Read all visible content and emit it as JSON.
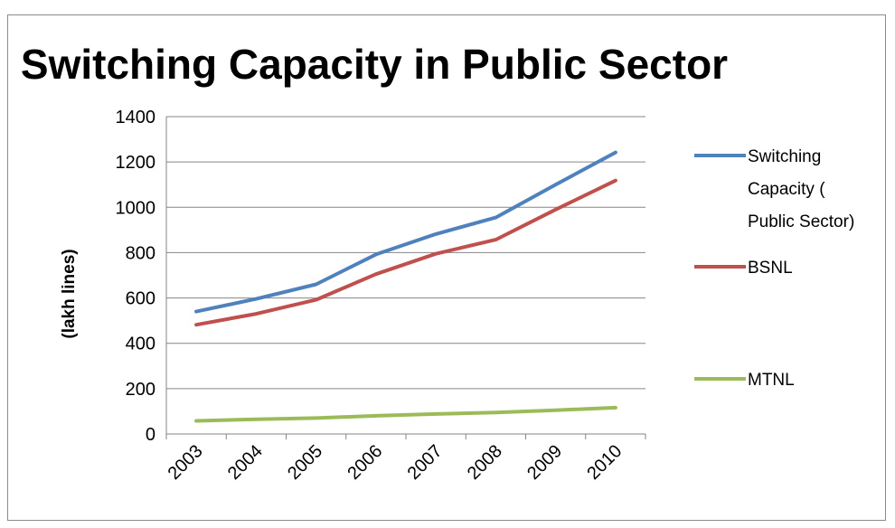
{
  "chart_data": {
    "type": "line",
    "title": "Switching Capacity in Public Sector",
    "xlabel": "",
    "ylabel": "(lakh lines)",
    "categories": [
      "2003",
      "2004",
      "2005",
      "2006",
      "2007",
      "2008",
      "2009",
      "2010"
    ],
    "ylim": [
      0,
      1400
    ],
    "yticks": [
      0,
      200,
      400,
      600,
      800,
      1000,
      1200,
      1400
    ],
    "grid": true,
    "legend_position": "right",
    "series": [
      {
        "name": "Switching Capacity ( Public Sector)",
        "legend_lines": [
          "Switching",
          "Capacity (",
          "Public Sector)"
        ],
        "color": "#4f81bd",
        "values": [
          540,
          596,
          660,
          792,
          882,
          955,
          1100,
          1242
        ]
      },
      {
        "name": "BSNL",
        "legend_lines": [
          "BSNL"
        ],
        "color": "#c0504d",
        "values": [
          482,
          530,
          592,
          705,
          795,
          857,
          990,
          1118
        ]
      },
      {
        "name": "MTNL",
        "legend_lines": [
          "MTNL"
        ],
        "color": "#9bbb59",
        "values": [
          58,
          65,
          70,
          80,
          88,
          95,
          105,
          116
        ]
      }
    ]
  }
}
